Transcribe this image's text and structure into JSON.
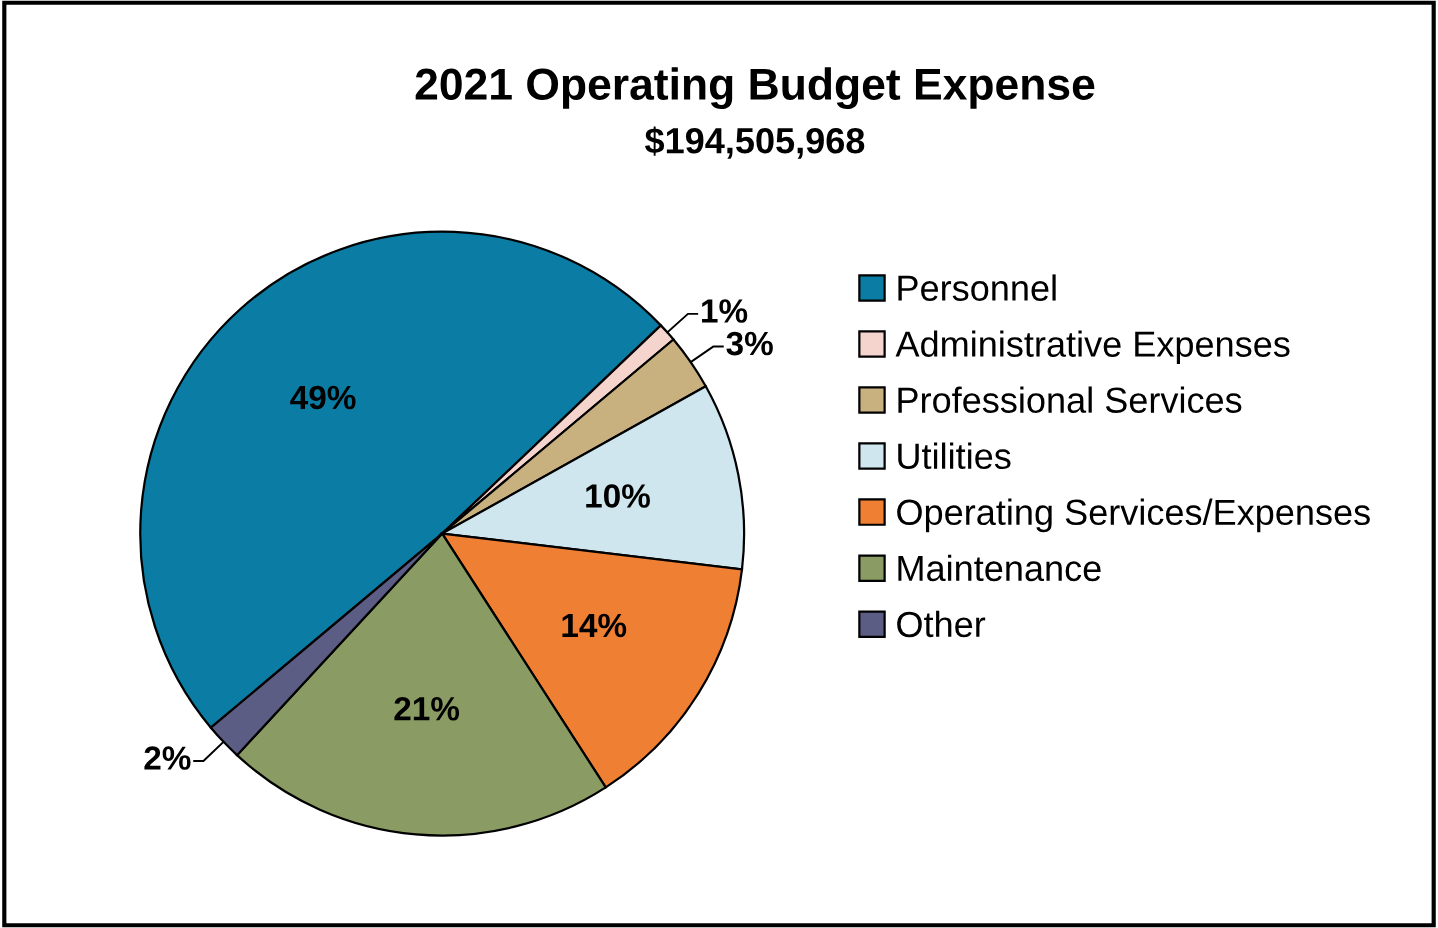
{
  "chart_data": {
    "type": "pie",
    "title": "2021 Operating Budget Expense",
    "subtitle": "$194,505,968",
    "categories": [
      "Personnel",
      "Administrative Expenses",
      "Professional Services",
      "Utilities",
      "Operating Services/Expenses",
      "Maintenance",
      "Other"
    ],
    "values": [
      49,
      1,
      3,
      10,
      14,
      21,
      2
    ],
    "value_labels": [
      "49%",
      "1%",
      "3%",
      "10%",
      "14%",
      "21%",
      "2%"
    ],
    "colors": [
      "#0b7ca4",
      "#f5d4ce",
      "#c9b17f",
      "#cfe6ee",
      "#ef7f33",
      "#8a9c63",
      "#5c5d85"
    ],
    "legend": "right"
  }
}
